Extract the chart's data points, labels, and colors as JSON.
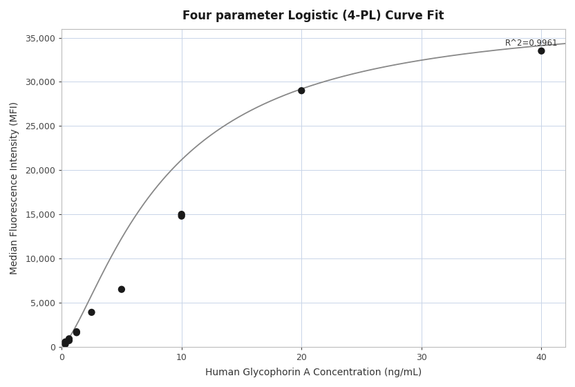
{
  "title": "Four parameter Logistic (4-PL) Curve Fit",
  "xlabel": "Human Glycophorin A Concentration (ng/mL)",
  "ylabel": "Median Fluorescence Intensity (MFI)",
  "r_squared": "R^2=0.9961",
  "scatter_x": [
    0.313,
    0.313,
    0.625,
    0.625,
    1.25,
    1.25,
    2.5,
    5.0,
    10.0,
    10.0,
    20.0,
    40.0
  ],
  "scatter_y": [
    300,
    550,
    900,
    700,
    1700,
    1600,
    3900,
    6500,
    14800,
    15000,
    29000,
    33500
  ],
  "xlim": [
    0,
    42
  ],
  "ylim": [
    0,
    36000
  ],
  "yticks": [
    0,
    5000,
    10000,
    15000,
    20000,
    25000,
    30000,
    35000
  ],
  "xticks": [
    0,
    10,
    20,
    30,
    40
  ],
  "bg_color": "#ffffff",
  "plot_bg_color": "#ffffff",
  "scatter_color": "#1a1a1a",
  "line_color": "#888888",
  "grid_color": "#c8d4e8",
  "4pl_A": 50,
  "4pl_B": 1.4,
  "4pl_C": 8.5,
  "4pl_D": 38000
}
